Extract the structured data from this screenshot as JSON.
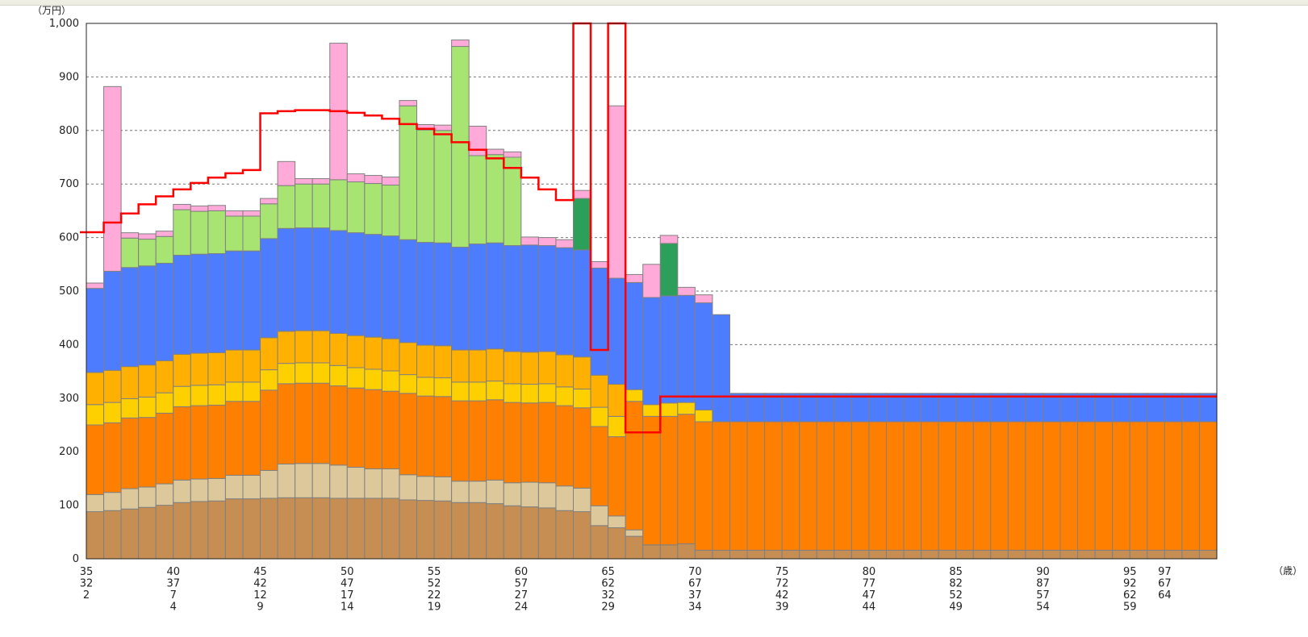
{
  "chart_data": {
    "type": "bar",
    "stacked": true,
    "title": "",
    "y_unit_label": "（万円）",
    "x_unit_label": "（歳）",
    "ylim": [
      0,
      1000
    ],
    "y_ticks": [
      0,
      100,
      200,
      300,
      400,
      500,
      600,
      700,
      800,
      900,
      1000
    ],
    "y_tick_labels": [
      "0",
      "100",
      "200",
      "300",
      "400",
      "500",
      "600",
      "700",
      "800",
      "900",
      "1,000"
    ],
    "grid": "horizontal-dashed",
    "x": [
      35,
      36,
      37,
      38,
      39,
      40,
      41,
      42,
      43,
      44,
      45,
      46,
      47,
      48,
      49,
      50,
      51,
      52,
      53,
      54,
      55,
      56,
      57,
      58,
      59,
      60,
      61,
      62,
      63,
      64,
      65,
      66,
      67,
      68,
      69,
      70,
      71,
      72,
      73,
      74,
      75,
      76,
      77,
      78,
      79,
      80,
      81,
      82,
      83,
      84,
      85,
      86,
      87,
      88,
      89,
      90,
      91,
      92,
      93,
      94,
      95,
      96,
      97,
      98,
      99
    ],
    "x_tick_labels": [
      {
        "x": 35,
        "lines": [
          "35",
          "32",
          "2"
        ]
      },
      {
        "x": 40,
        "lines": [
          "40",
          "37",
          "7",
          "4"
        ]
      },
      {
        "x": 45,
        "lines": [
          "45",
          "42",
          "12",
          "9"
        ]
      },
      {
        "x": 50,
        "lines": [
          "50",
          "47",
          "17",
          "14"
        ]
      },
      {
        "x": 55,
        "lines": [
          "55",
          "52",
          "22",
          "19"
        ]
      },
      {
        "x": 60,
        "lines": [
          "60",
          "57",
          "27",
          "24"
        ]
      },
      {
        "x": 65,
        "lines": [
          "65",
          "62",
          "32",
          "29"
        ]
      },
      {
        "x": 70,
        "lines": [
          "70",
          "67",
          "37",
          "34"
        ]
      },
      {
        "x": 75,
        "lines": [
          "75",
          "72",
          "42",
          "39"
        ]
      },
      {
        "x": 80,
        "lines": [
          "80",
          "77",
          "47",
          "44"
        ]
      },
      {
        "x": 85,
        "lines": [
          "85",
          "82",
          "52",
          "49"
        ]
      },
      {
        "x": 90,
        "lines": [
          "90",
          "87",
          "57",
          "54"
        ]
      },
      {
        "x": 95,
        "lines": [
          "95",
          "92",
          "62",
          "59"
        ]
      },
      {
        "x": 97,
        "lines": [
          "97",
          "67",
          "64"
        ]
      }
    ],
    "series": [
      {
        "color": "#c68e52",
        "values": [
          88,
          90,
          93,
          96,
          100,
          105,
          107,
          108,
          112,
          112,
          113,
          114,
          114,
          114,
          113,
          113,
          113,
          113,
          110,
          109,
          108,
          105,
          105,
          103,
          99,
          97,
          95,
          90,
          88,
          62,
          58,
          42,
          26,
          26,
          28,
          16,
          16,
          16,
          16,
          16,
          16,
          16,
          16,
          16,
          16,
          16,
          16,
          16,
          16,
          16,
          16,
          16,
          16,
          16,
          16,
          16,
          16,
          16,
          16,
          16,
          16,
          16,
          16,
          16,
          16
        ]
      },
      {
        "color": "#dcc89a",
        "values": [
          32,
          34,
          38,
          38,
          40,
          42,
          42,
          42,
          44,
          44,
          52,
          63,
          64,
          64,
          62,
          58,
          55,
          55,
          47,
          45,
          45,
          40,
          40,
          44,
          43,
          46,
          47,
          46,
          44,
          37,
          22,
          12,
          0,
          0,
          0,
          0,
          0,
          0,
          0,
          0,
          0,
          0,
          0,
          0,
          0,
          0,
          0,
          0,
          0,
          0,
          0,
          0,
          0,
          0,
          0,
          0,
          0,
          0,
          0,
          0,
          0,
          0,
          0,
          0,
          0
        ]
      },
      {
        "color": "#ff8000",
        "values": [
          130,
          130,
          132,
          130,
          132,
          137,
          137,
          137,
          138,
          138,
          150,
          150,
          150,
          150,
          148,
          148,
          148,
          145,
          152,
          150,
          150,
          150,
          150,
          150,
          150,
          148,
          150,
          150,
          150,
          148,
          148,
          240,
          240,
          240,
          242,
          240,
          240,
          240,
          240,
          240,
          240,
          240,
          240,
          240,
          240,
          240,
          240,
          240,
          240,
          240,
          240,
          240,
          240,
          240,
          240,
          240,
          240,
          240,
          240,
          240,
          240,
          240,
          240,
          240,
          240
        ]
      },
      {
        "color": "#ffd000",
        "values": [
          38,
          38,
          36,
          38,
          38,
          38,
          38,
          38,
          36,
          36,
          38,
          38,
          38,
          38,
          38,
          38,
          38,
          38,
          35,
          35,
          35,
          35,
          35,
          35,
          35,
          35,
          35,
          35,
          35,
          36,
          38,
          22,
          22,
          25,
          22,
          22,
          0,
          0,
          0,
          0,
          0,
          0,
          0,
          0,
          0,
          0,
          0,
          0,
          0,
          0,
          0,
          0,
          0,
          0,
          0,
          0,
          0,
          0,
          0,
          0,
          0,
          0,
          0,
          0,
          0
        ]
      },
      {
        "color": "#ffb000",
        "values": [
          60,
          60,
          60,
          60,
          60,
          60,
          60,
          60,
          60,
          60,
          60,
          60,
          60,
          60,
          60,
          60,
          60,
          60,
          60,
          60,
          60,
          60,
          60,
          60,
          60,
          60,
          60,
          60,
          60,
          60,
          60,
          0,
          0,
          0,
          0,
          0,
          0,
          0,
          0,
          0,
          0,
          0,
          0,
          0,
          0,
          0,
          0,
          0,
          0,
          0,
          0,
          0,
          0,
          0,
          0,
          0,
          0,
          0,
          0,
          0,
          0,
          0,
          0,
          0,
          0
        ]
      },
      {
        "color": "#4d7cff",
        "values": [
          157,
          185,
          185,
          185,
          182,
          185,
          185,
          185,
          185,
          185,
          185,
          192,
          192,
          192,
          192,
          192,
          192,
          192,
          192,
          192,
          192,
          192,
          198,
          198,
          198,
          200,
          198,
          200,
          200,
          200,
          198,
          200,
          200,
          200,
          200,
          200,
          200,
          53,
          53,
          53,
          53,
          53,
          53,
          53,
          53,
          53,
          53,
          53,
          53,
          53,
          53,
          53,
          53,
          53,
          53,
          53,
          53,
          53,
          53,
          53,
          53,
          53,
          53,
          53,
          53
        ]
      },
      {
        "color": "#a8e472",
        "values": [
          0,
          0,
          55,
          50,
          50,
          85,
          80,
          80,
          65,
          65,
          65,
          80,
          82,
          82,
          95,
          95,
          95,
          95,
          250,
          210,
          210,
          375,
          165,
          165,
          165,
          0,
          0,
          0,
          0,
          0,
          0,
          0,
          0,
          0,
          0,
          0,
          0,
          0,
          0,
          0,
          0,
          0,
          0,
          0,
          0,
          0,
          0,
          0,
          0,
          0,
          0,
          0,
          0,
          0,
          0,
          0,
          0,
          0,
          0,
          0,
          0,
          0,
          0,
          0,
          0
        ]
      },
      {
        "color": "#2ca05a",
        "values": [
          0,
          0,
          0,
          0,
          0,
          0,
          0,
          0,
          0,
          0,
          0,
          0,
          0,
          0,
          0,
          0,
          0,
          0,
          0,
          0,
          0,
          0,
          0,
          0,
          0,
          0,
          0,
          0,
          96,
          0,
          0,
          0,
          0,
          98,
          0,
          0,
          0,
          0,
          0,
          0,
          0,
          0,
          0,
          0,
          0,
          0,
          0,
          0,
          0,
          0,
          0,
          0,
          0,
          0,
          0,
          0,
          0,
          0,
          0,
          0,
          0,
          0,
          0,
          0,
          0
        ]
      },
      {
        "color": "#ffaad8",
        "values": [
          10,
          345,
          10,
          10,
          10,
          10,
          10,
          10,
          10,
          10,
          10,
          45,
          10,
          10,
          255,
          15,
          15,
          15,
          10,
          10,
          10,
          12,
          55,
          10,
          10,
          15,
          15,
          15,
          15,
          12,
          322,
          15,
          62,
          15,
          15,
          15,
          0,
          0,
          0,
          0,
          0,
          0,
          0,
          0,
          0,
          0,
          0,
          0,
          0,
          0,
          0,
          0,
          0,
          0,
          0,
          0,
          0,
          0,
          0,
          0,
          0,
          0,
          0,
          0,
          0
        ]
      }
    ],
    "step_line": {
      "color": "#ff0000",
      "values": [
        610,
        628,
        645,
        662,
        677,
        690,
        702,
        712,
        720,
        726,
        832,
        836,
        838,
        838,
        836,
        833,
        828,
        822,
        812,
        803,
        793,
        778,
        764,
        748,
        730,
        712,
        690,
        670,
        1000,
        390,
        1000,
        236,
        236,
        303,
        303,
        303,
        303,
        303,
        303,
        303,
        303,
        303,
        303,
        303,
        303,
        303,
        303,
        303,
        303,
        303,
        303,
        303,
        303,
        303,
        303,
        303,
        303,
        303,
        303,
        303,
        303,
        303,
        303,
        303,
        303
      ]
    }
  }
}
